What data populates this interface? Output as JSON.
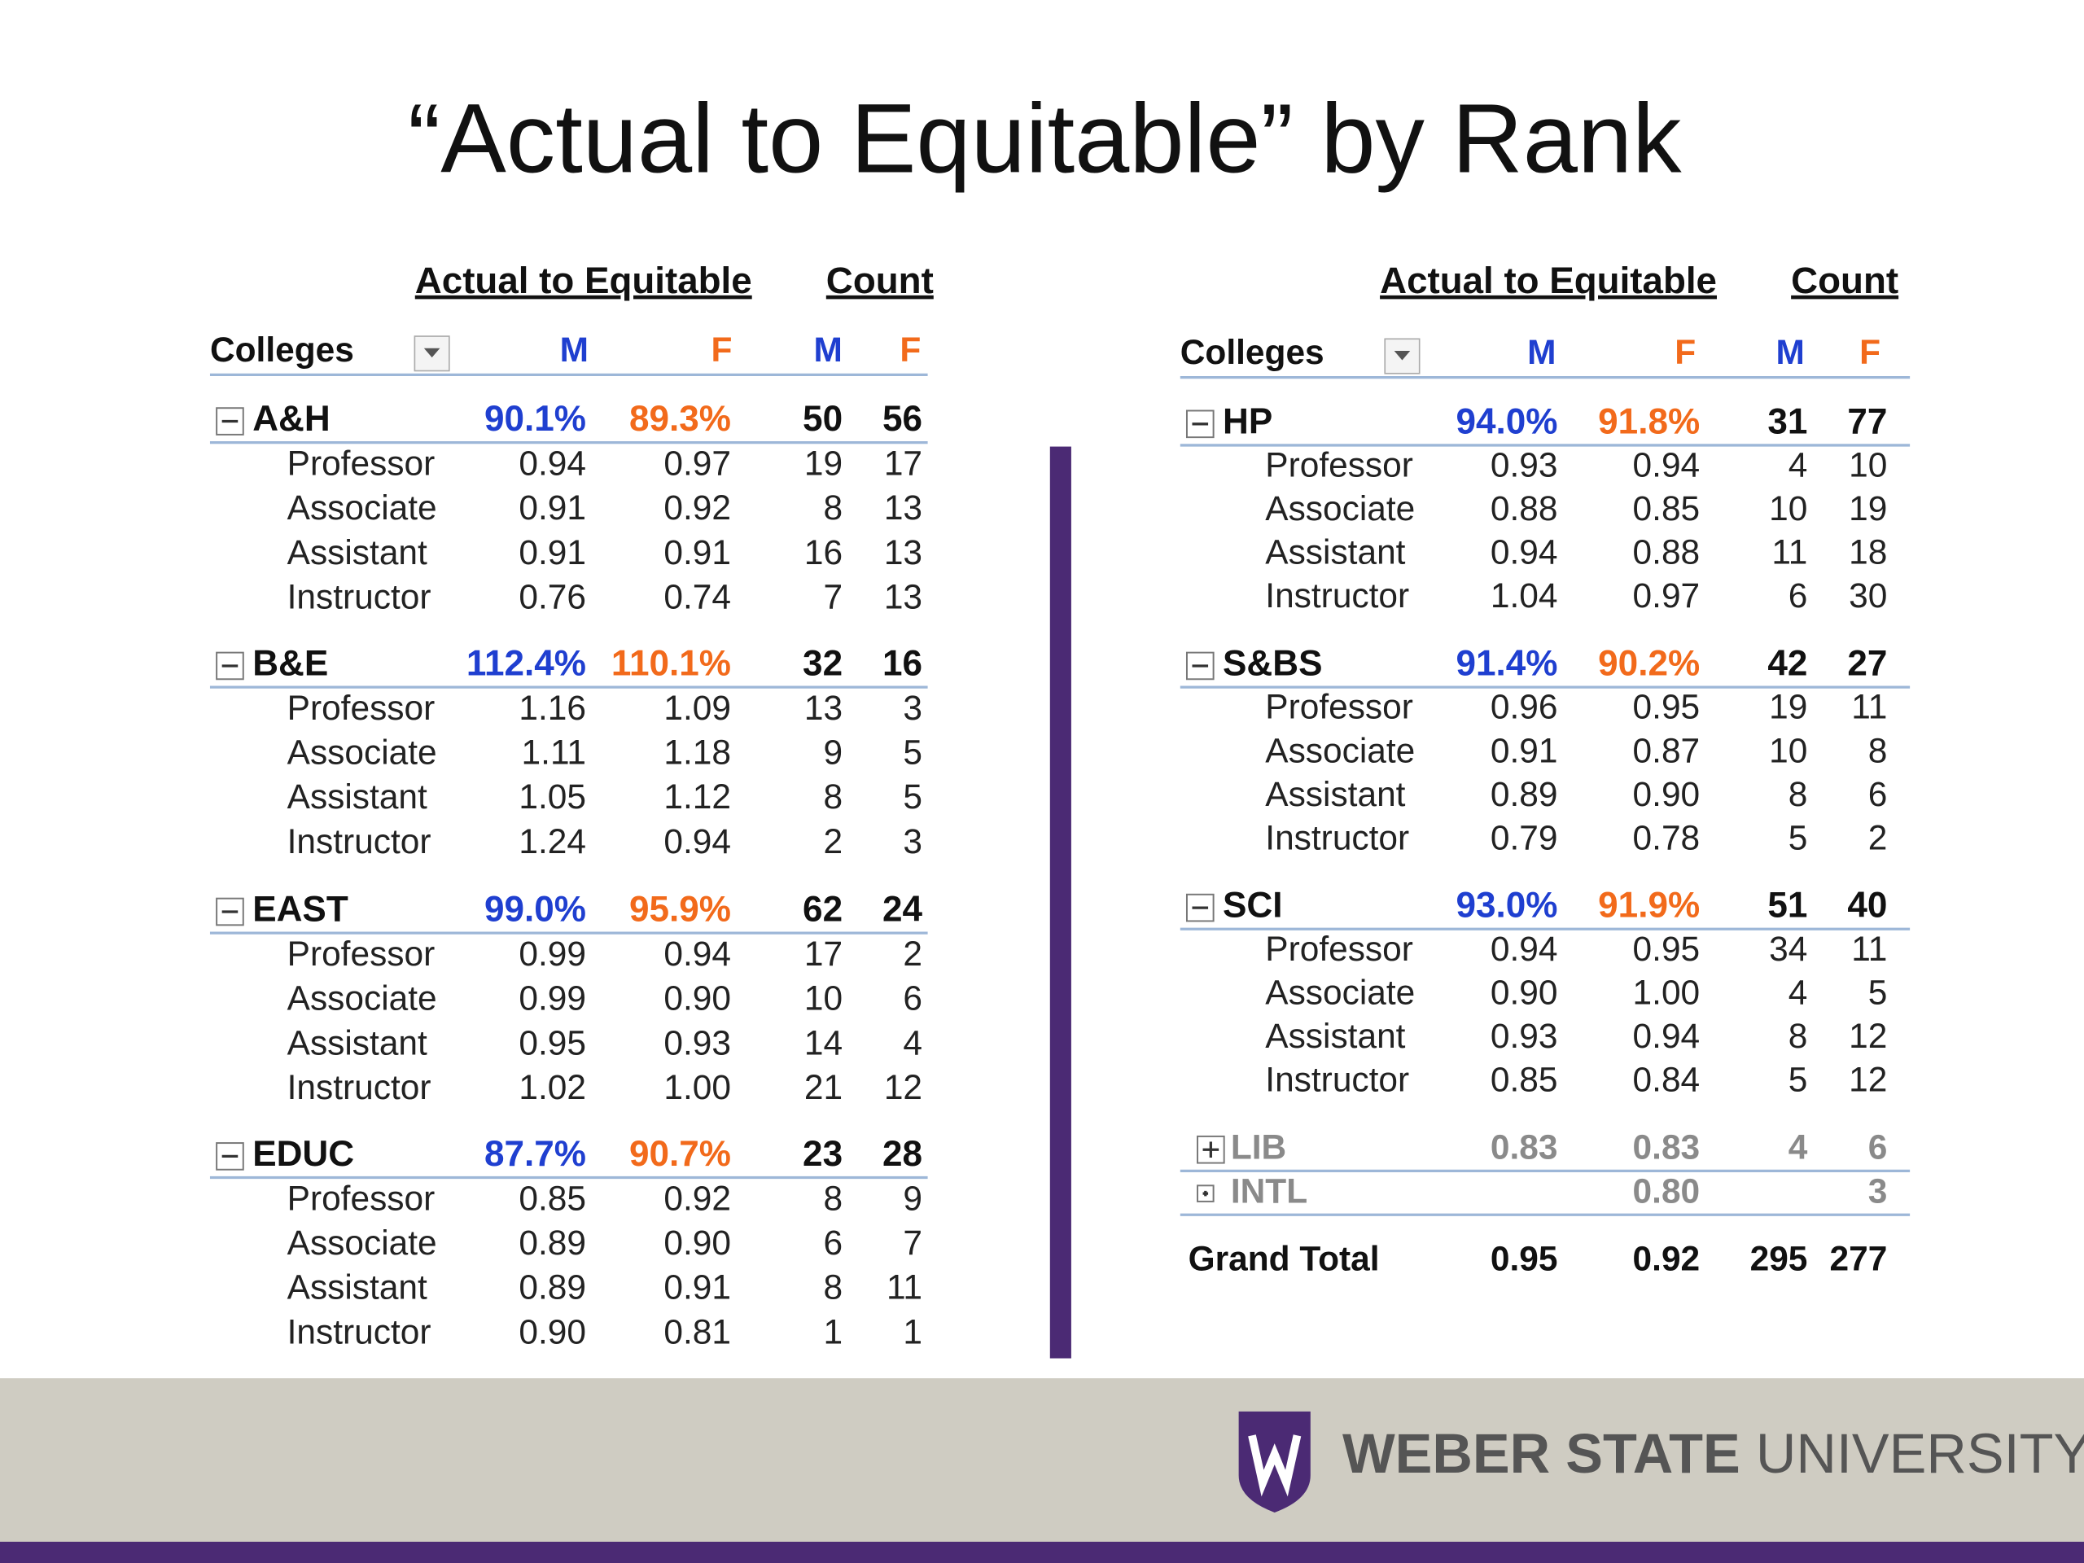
{
  "title": "“Actual to Equitable” by Rank",
  "tables": [
    {
      "group_headers": [
        "Actual to Equitable",
        "Count"
      ],
      "columns": [
        "Colleges",
        "M",
        "F",
        "M",
        "F"
      ],
      "groups": [
        {
          "name": "A&H",
          "values": [
            "90.1%",
            "89.3%",
            "50",
            "56"
          ],
          "rows": [
            [
              "Professor",
              "0.94",
              "0.97",
              "19",
              "17"
            ],
            [
              "Associate",
              "0.91",
              "0.92",
              "8",
              "13"
            ],
            [
              "Assistant",
              "0.91",
              "0.91",
              "16",
              "13"
            ],
            [
              "Instructor",
              "0.76",
              "0.74",
              "7",
              "13"
            ]
          ]
        },
        {
          "name": "B&E",
          "values": [
            "112.4%",
            "110.1%",
            "32",
            "16"
          ],
          "rows": [
            [
              "Professor",
              "1.16",
              "1.09",
              "13",
              "3"
            ],
            [
              "Associate",
              "1.11",
              "1.18",
              "9",
              "5"
            ],
            [
              "Assistant",
              "1.05",
              "1.12",
              "8",
              "5"
            ],
            [
              "Instructor",
              "1.24",
              "0.94",
              "2",
              "3"
            ]
          ]
        },
        {
          "name": "EAST",
          "values": [
            "99.0%",
            "95.9%",
            "62",
            "24"
          ],
          "rows": [
            [
              "Professor",
              "0.99",
              "0.94",
              "17",
              "2"
            ],
            [
              "Associate",
              "0.99",
              "0.90",
              "10",
              "6"
            ],
            [
              "Assistant",
              "0.95",
              "0.93",
              "14",
              "4"
            ],
            [
              "Instructor",
              "1.02",
              "1.00",
              "21",
              "12"
            ]
          ]
        },
        {
          "name": "EDUC",
          "values": [
            "87.7%",
            "90.7%",
            "23",
            "28"
          ],
          "rows": [
            [
              "Professor",
              "0.85",
              "0.92",
              "8",
              "9"
            ],
            [
              "Associate",
              "0.89",
              "0.90",
              "6",
              "7"
            ],
            [
              "Assistant",
              "0.89",
              "0.91",
              "8",
              "11"
            ],
            [
              "Instructor",
              "0.90",
              "0.81",
              "1",
              "1"
            ]
          ]
        }
      ]
    },
    {
      "group_headers": [
        "Actual to Equitable",
        "Count"
      ],
      "columns": [
        "Colleges",
        "M",
        "F",
        "M",
        "F"
      ],
      "groups": [
        {
          "name": "HP",
          "values": [
            "94.0%",
            "91.8%",
            "31",
            "77"
          ],
          "rows": [
            [
              "Professor",
              "0.93",
              "0.94",
              "4",
              "10"
            ],
            [
              "Associate",
              "0.88",
              "0.85",
              "10",
              "19"
            ],
            [
              "Assistant",
              "0.94",
              "0.88",
              "11",
              "18"
            ],
            [
              "Instructor",
              "1.04",
              "0.97",
              "6",
              "30"
            ]
          ]
        },
        {
          "name": "S&BS",
          "values": [
            "91.4%",
            "90.2%",
            "42",
            "27"
          ],
          "rows": [
            [
              "Professor",
              "0.96",
              "0.95",
              "19",
              "11"
            ],
            [
              "Associate",
              "0.91",
              "0.87",
              "10",
              "8"
            ],
            [
              "Assistant",
              "0.89",
              "0.90",
              "8",
              "6"
            ],
            [
              "Instructor",
              "0.79",
              "0.78",
              "5",
              "2"
            ]
          ]
        },
        {
          "name": "SCI",
          "values": [
            "93.0%",
            "91.9%",
            "51",
            "40"
          ],
          "rows": [
            [
              "Professor",
              "0.94",
              "0.95",
              "34",
              "11"
            ],
            [
              "Associate",
              "0.90",
              "1.00",
              "4",
              "5"
            ],
            [
              "Assistant",
              "0.93",
              "0.94",
              "8",
              "12"
            ],
            [
              "Instructor",
              "0.85",
              "0.84",
              "5",
              "12"
            ]
          ]
        }
      ],
      "collapsed_groups": [
        {
          "name": "LIB",
          "values": [
            "0.83",
            "0.83",
            "4",
            "6"
          ]
        },
        {
          "name": "INTL",
          "values": [
            null,
            "0.80",
            null,
            "3"
          ]
        }
      ],
      "grand_total": {
        "label": "Grand Total",
        "values": [
          "0.95",
          "0.92",
          "295",
          "277"
        ]
      }
    }
  ],
  "footer": {
    "logo_bold": "WEBER STATE",
    "logo_regular": "UNIVERSITY"
  }
}
